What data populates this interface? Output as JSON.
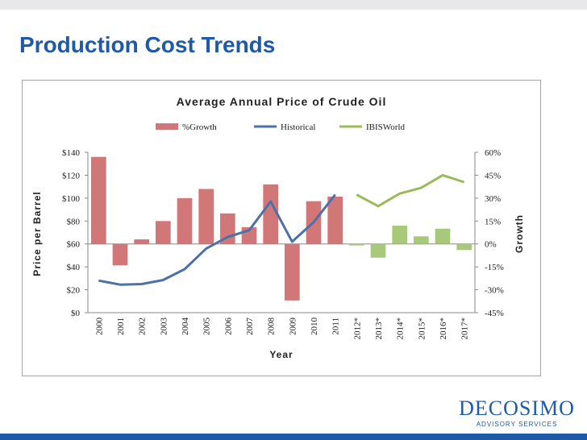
{
  "slide": {
    "title": "Production Cost Trends"
  },
  "logo": {
    "name": "DECOSIMO",
    "tagline": "ADVISORY SERVICES"
  },
  "colors": {
    "title": "#1f5aa6",
    "growth_bar": "#d27778",
    "historical_line": "#4a72a8",
    "ibisworld_line": "#9bbb59",
    "ibisworld_bar": "#a9c97a"
  },
  "chart_data": {
    "type": "bar+line",
    "title": "Average Annual Price of Crude Oil",
    "xlabel": "Year",
    "ylabel": "Price per Barrel",
    "y2label": "Growth",
    "categories": [
      "2000",
      "2001",
      "2002",
      "2003",
      "2004",
      "2005",
      "2006",
      "2007",
      "2008",
      "2009",
      "2010",
      "2011",
      "2012*",
      "2013*",
      "2014*",
      "2015*",
      "2016*",
      "2017*"
    ],
    "ylim": [
      0,
      140
    ],
    "yticks": [
      "$0",
      "$20",
      "$40",
      "$60",
      "$80",
      "$100",
      "$120",
      "$140"
    ],
    "y2lim": [
      -0.45,
      0.6
    ],
    "y2ticks": [
      "-45%",
      "-30%",
      "-15%",
      "0%",
      "15%",
      "30%",
      "45%",
      "60%"
    ],
    "legend": [
      "%Growth",
      "Historical",
      "IBISWorld"
    ],
    "legend_position": "top",
    "series": [
      {
        "name": "%Growth",
        "kind": "bar",
        "axis": "right",
        "values": [
          0.57,
          -0.14,
          0.03,
          0.15,
          0.3,
          0.36,
          0.2,
          0.11,
          0.39,
          -0.37,
          0.28,
          0.31,
          -0.01,
          -0.09,
          0.12,
          0.05,
          0.1,
          -0.04
        ]
      },
      {
        "name": "Historical",
        "kind": "line",
        "axis": "left",
        "values": [
          28,
          24.5,
          25,
          28.5,
          38,
          56,
          66,
          72,
          97,
          62,
          79,
          103,
          null,
          null,
          null,
          null,
          null,
          null
        ]
      },
      {
        "name": "IBISWorld",
        "kind": "line",
        "axis": "left",
        "values": [
          null,
          null,
          null,
          null,
          null,
          null,
          null,
          null,
          null,
          null,
          null,
          null,
          103,
          93,
          104,
          109,
          120,
          114
        ]
      }
    ]
  }
}
